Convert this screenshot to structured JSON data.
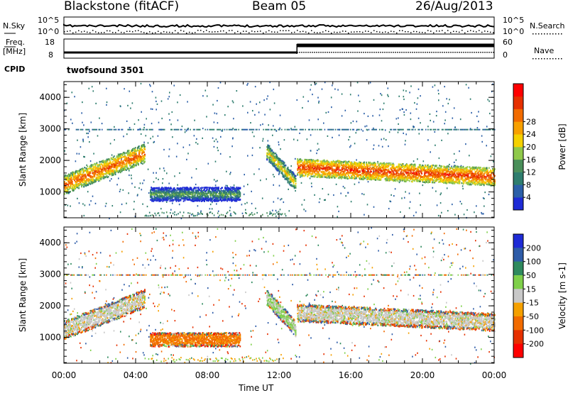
{
  "header": {
    "station": "Blackstone (fitACF)",
    "beam": "Beam 05",
    "date": "26/Aug/2013"
  },
  "noise_panel": {
    "left_label": "N.Sky",
    "right_label": "N.Search",
    "y_ticks": [
      "10^5",
      "10^0"
    ]
  },
  "freq_panel": {
    "left_label_1": "Freq.",
    "left_label_2": "[MHz]",
    "left_ticks": [
      "18",
      "8"
    ],
    "right_label": "Nave",
    "right_ticks": [
      "60",
      "0"
    ],
    "cpid_label": "CPID",
    "cpid_value": "twofsound 3501"
  },
  "chart_data": [
    {
      "type": "heatmap",
      "name": "power",
      "ylabel": "Slant Range [km]",
      "xlabel": "Time UT",
      "xlim": [
        "00:00",
        "24:00"
      ],
      "ylim": [
        180,
        4500
      ],
      "yticks": [
        1000,
        2000,
        3000,
        4000
      ],
      "xticks": [
        "00:00",
        "04:00",
        "08:00",
        "12:00",
        "16:00",
        "20:00",
        "00:00"
      ],
      "colorbar": {
        "label": "Power [dB]",
        "ticks": [
          4,
          8,
          12,
          16,
          20,
          24,
          28
        ],
        "range": [
          0,
          30
        ],
        "colors": [
          "#1e2bd6",
          "#2b5fa8",
          "#2e7d6e",
          "#4a8f5a",
          "#8fc94a",
          "#f5d100",
          "#f8a000",
          "#f26b00",
          "#e63000",
          "#ff0000"
        ]
      },
      "bands": [
        {
          "t0": 0.0,
          "t1": 4.5,
          "r0": 1250,
          "r1": 2250,
          "width": 300,
          "level": 24
        },
        {
          "t0": 4.8,
          "t1": 9.8,
          "r0": 950,
          "r1": 950,
          "width": 220,
          "level": 12
        },
        {
          "t0": 11.3,
          "t1": 12.9,
          "r0": 2300,
          "r1": 1300,
          "width": 250,
          "level": 18
        },
        {
          "t0": 13.0,
          "t1": 24.0,
          "r0": 1800,
          "r1": 1500,
          "width": 280,
          "level": 26
        }
      ]
    },
    {
      "type": "heatmap",
      "name": "velocity",
      "ylabel": "Slant Range [km]",
      "xlabel": "Time UT",
      "xlim": [
        "00:00",
        "24:00"
      ],
      "ylim": [
        180,
        4500
      ],
      "yticks": [
        1000,
        2000,
        3000,
        4000
      ],
      "xticks": [
        "00:00",
        "04:00",
        "08:00",
        "12:00",
        "16:00",
        "20:00",
        "00:00"
      ],
      "colorbar": {
        "label": "Velocity [m s-1]",
        "ticks": [
          200,
          100,
          50,
          15,
          -15,
          -50,
          -100,
          -200
        ],
        "colors": [
          "#1e2bd6",
          "#2e5ca8",
          "#2f8a5e",
          "#7fd04a",
          "#c8c8c8",
          "#f5a000",
          "#f26b00",
          "#e63000",
          "#ff0000"
        ]
      },
      "bands": [
        {
          "t0": 0.0,
          "t1": 4.5,
          "r0": 1250,
          "r1": 2250,
          "width": 300,
          "level": 0
        },
        {
          "t0": 4.8,
          "t1": 9.8,
          "r0": 950,
          "r1": 950,
          "width": 220,
          "level": -60
        },
        {
          "t0": 11.3,
          "t1": 12.9,
          "r0": 2300,
          "r1": 1300,
          "width": 250,
          "level": 20
        },
        {
          "t0": 13.0,
          "t1": 24.0,
          "r0": 1800,
          "r1": 1500,
          "width": 280,
          "level": 0
        }
      ]
    }
  ]
}
